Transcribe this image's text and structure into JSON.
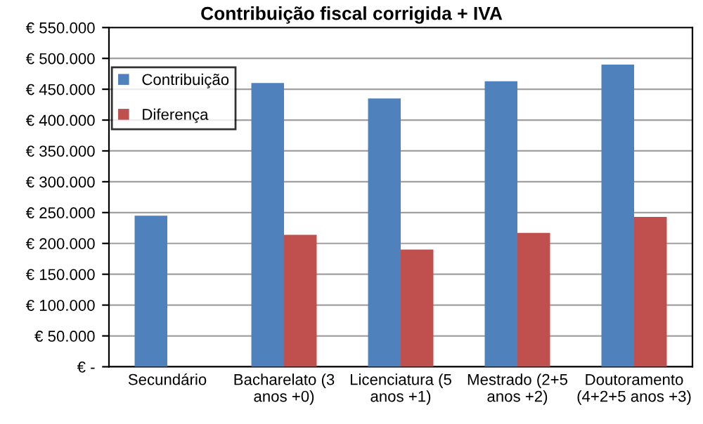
{
  "chart_data": {
    "type": "bar",
    "title": "Contribuição fiscal corrigida + IVA",
    "categories": [
      "Secundário",
      "Bacharelato (3\nanos +0)",
      "Licenciatura (5\nanos +1)",
      "Mestrado (2+5\nanos +2)",
      "Doutoramento\n(4+2+5 anos +3)"
    ],
    "series": [
      {
        "name": "Contribuição",
        "color": "#4f81bd",
        "values": [
          245000,
          460000,
          435000,
          463000,
          490000
        ]
      },
      {
        "name": "Diferença",
        "color": "#c0504d",
        "values": [
          null,
          214000,
          190000,
          217000,
          243000
        ]
      }
    ],
    "ylim": [
      0,
      550000
    ],
    "yticks": [
      {
        "value": 0,
        "label": "€ -"
      },
      {
        "value": 50000,
        "label": "€ 50.000"
      },
      {
        "value": 100000,
        "label": "€ 100.000"
      },
      {
        "value": 150000,
        "label": "€ 150.000"
      },
      {
        "value": 200000,
        "label": "€ 200.000"
      },
      {
        "value": 250000,
        "label": "€ 250.000"
      },
      {
        "value": 300000,
        "label": "€ 300.000"
      },
      {
        "value": 350000,
        "label": "€ 350.000"
      },
      {
        "value": 400000,
        "label": "€ 400.000"
      },
      {
        "value": 450000,
        "label": "€ 450.000"
      },
      {
        "value": 500000,
        "label": "€ 500.000"
      },
      {
        "value": 550000,
        "label": "€ 550.000"
      }
    ],
    "grid": "y",
    "legend": "top left"
  }
}
